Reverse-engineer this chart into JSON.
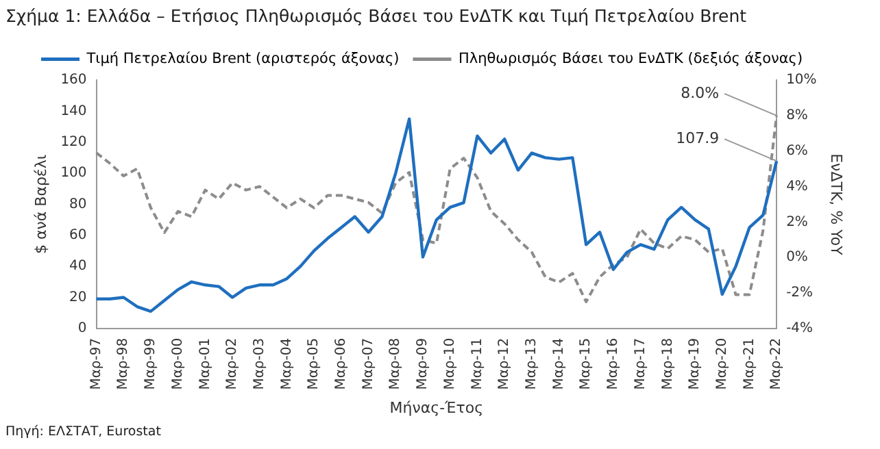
{
  "chart_data": {
    "type": "line",
    "title": "Σχήμα 1: Ελλάδα – Ετήσιος Πληθωρισμός Βάσει του ΕνΔΤΚ και Τιμή Πετρελαίου Brent",
    "xlabel": "Μήνας-Έτος",
    "ylabel": "$ ανά Βαρέλι",
    "y2label": "ΕνΔΤΚ, % YoY",
    "categories": [
      "Μαρ-97",
      null,
      "Μαρ-98",
      null,
      "Μαρ-99",
      null,
      "Μαρ-00",
      null,
      "Μαρ-01",
      null,
      "Μαρ-02",
      null,
      "Μαρ-03",
      null,
      "Μαρ-04",
      null,
      "Μαρ-05",
      null,
      "Μαρ-06",
      null,
      "Μαρ-07",
      null,
      "Μαρ-08",
      null,
      "Μαρ-09",
      null,
      "Μαρ-10",
      null,
      "Μαρ-11",
      null,
      "Μαρ-12",
      null,
      "Μαρ-13",
      null,
      "Μαρ-14",
      null,
      "Μαρ-15",
      null,
      "Μαρ-16",
      null,
      "Μαρ-17",
      null,
      "Μαρ-18",
      null,
      "Μαρ-19",
      null,
      "Μαρ-20",
      null,
      "Μαρ-21",
      null,
      "Μαρ-22"
    ],
    "series": [
      {
        "name": "Τιμή Πετρελαίου Brent (αριστερός άξονας)",
        "color": "#1f6fbf",
        "line_style": "solid",
        "values": [
          19,
          19,
          20,
          14,
          11,
          18,
          25,
          30,
          28,
          27,
          20,
          26,
          28,
          28,
          32,
          40,
          50,
          58,
          65,
          72,
          62,
          72,
          100,
          135,
          46,
          70,
          78,
          81,
          124,
          113,
          122,
          102,
          113,
          110,
          109,
          110,
          54,
          62,
          38,
          49,
          54,
          51,
          70,
          78,
          70,
          64,
          22,
          40,
          65,
          73,
          107.9
        ],
        "value_labels": [
          null,
          null,
          null,
          null,
          null,
          null,
          null,
          null,
          null,
          null,
          null,
          null,
          null,
          null,
          null,
          null,
          null,
          null,
          null,
          null,
          null,
          null,
          null,
          null,
          null,
          null,
          null,
          null,
          null,
          null,
          null,
          null,
          null,
          null,
          null,
          null,
          null,
          null,
          null,
          null,
          null,
          null,
          null,
          null,
          null,
          null,
          null,
          null,
          null,
          null,
          "107.9"
        ]
      },
      {
        "name": "Πληθωρισμός Βάσει του ΕνΔΤΚ (δεξιός άξονας)",
        "color": "#8c8c8c",
        "line_style": "dashed",
        "axis": "y2",
        "values": [
          5.9,
          5.3,
          4.6,
          5.0,
          2.8,
          1.4,
          2.6,
          2.3,
          3.8,
          3.3,
          4.2,
          3.8,
          4.0,
          3.4,
          2.8,
          3.3,
          2.8,
          3.5,
          3.5,
          3.3,
          3.1,
          2.5,
          4.2,
          4.8,
          1.0,
          0.8,
          5.0,
          5.6,
          4.5,
          2.6,
          1.9,
          1.0,
          0.3,
          -1.1,
          -1.4,
          -0.9,
          -2.5,
          -1.1,
          -0.4,
          0.0,
          1.6,
          0.8,
          0.5,
          1.2,
          1.0,
          0.3,
          0.5,
          -2.1,
          -2.1,
          1.5,
          8.0
        ],
        "value_labels": [
          null,
          null,
          null,
          null,
          null,
          null,
          null,
          null,
          null,
          null,
          null,
          null,
          null,
          null,
          null,
          null,
          null,
          null,
          null,
          null,
          null,
          null,
          null,
          null,
          null,
          null,
          null,
          null,
          null,
          null,
          null,
          null,
          null,
          null,
          null,
          null,
          null,
          null,
          null,
          null,
          null,
          null,
          null,
          null,
          null,
          null,
          null,
          null,
          null,
          null,
          "8.0%"
        ]
      }
    ],
    "ylim": [
      0,
      160
    ],
    "yticks": [
      0,
      20,
      40,
      60,
      80,
      100,
      120,
      140,
      160
    ],
    "y2lim": [
      -4,
      10
    ],
    "y2ticks": [
      {
        "value": -4,
        "label": "-4%"
      },
      {
        "value": -2,
        "label": "-2%"
      },
      {
        "value": 0,
        "label": "0%"
      },
      {
        "value": 2,
        "label": "2%"
      },
      {
        "value": 4,
        "label": "4%"
      },
      {
        "value": 6,
        "label": "6%"
      },
      {
        "value": 8,
        "label": "8%"
      },
      {
        "value": 10,
        "label": "10%"
      }
    ],
    "grid": false,
    "legend": "top left",
    "marker": "none",
    "annotations": [
      "Πηγή: ΕΛΣΤΑΤ, Eurostat"
    ]
  }
}
